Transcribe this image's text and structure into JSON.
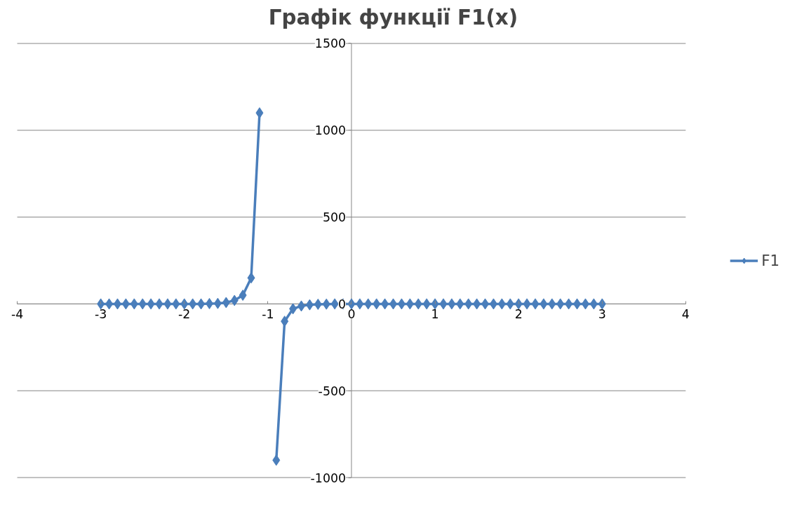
{
  "chart_data": {
    "type": "line",
    "title": "Графік функції F1(x)",
    "x": [
      -3,
      -2.9,
      -2.8,
      -2.7,
      -2.6,
      -2.5,
      -2.4,
      -2.3,
      -2.2,
      -2.1,
      -2,
      -1.9,
      -1.8,
      -1.7,
      -1.6,
      -1.5,
      -1.4,
      -1.3,
      -1.2,
      -1.1,
      -1,
      -0.9,
      -0.8,
      -0.7,
      -0.6,
      -0.5,
      -0.4,
      -0.3,
      -0.2,
      -0.1,
      0,
      0.1,
      0.2,
      0.3,
      0.4,
      0.5,
      0.6,
      0.7,
      0.8,
      0.9,
      1,
      1.1,
      1.2,
      1.3,
      1.4,
      1.5,
      1.6,
      1.7,
      1.8,
      1.9,
      2,
      2.1,
      2.2,
      2.3,
      2.4,
      2.5,
      2.6,
      2.7,
      2.8,
      2.9,
      3
    ],
    "series": [
      {
        "name": "F1",
        "color": "#4a7ebb",
        "values": [
          0,
          0,
          0,
          0,
          0,
          0,
          0,
          0,
          0,
          0,
          0,
          0,
          0,
          2,
          3,
          8,
          20,
          50,
          150,
          1100,
          null,
          -900,
          -100,
          -28,
          -12,
          -5,
          -2,
          -1,
          0,
          0,
          0,
          0,
          0,
          0,
          0,
          0,
          0,
          0,
          0,
          0,
          0,
          0,
          0,
          0,
          0,
          0,
          0,
          0,
          0,
          0,
          0,
          0,
          0,
          0,
          0,
          0,
          0,
          0,
          0,
          0,
          0
        ]
      }
    ],
    "xlim": [
      -4,
      4
    ],
    "xticks": [
      -4,
      -3,
      -2,
      -1,
      0,
      1,
      2,
      3,
      4
    ],
    "ylim": [
      -1000,
      1500
    ],
    "yticks": [
      -1000,
      -500,
      0,
      500,
      1000,
      1500
    ],
    "grid": "y",
    "legend": "right",
    "marker": "diamond",
    "line_style": "solid"
  }
}
